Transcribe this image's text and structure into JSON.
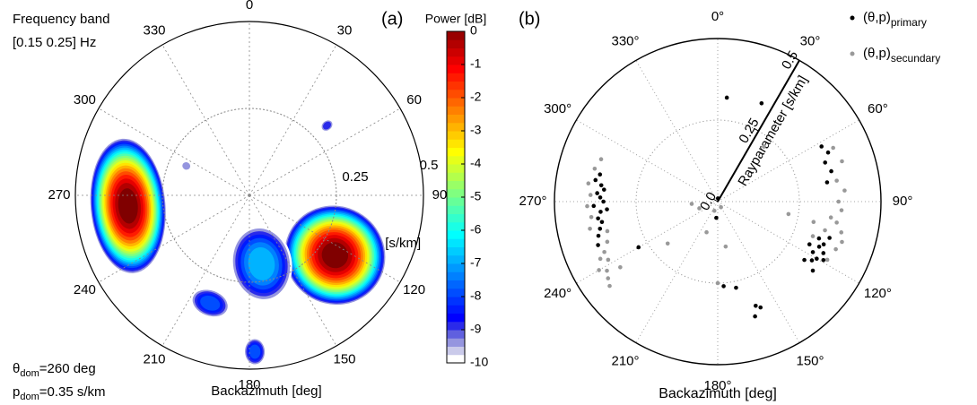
{
  "chart_data": [
    {
      "type": "polar-heatmap",
      "panel": "(a)",
      "annotations": [
        "Frequency band",
        "[0.15 0.25] Hz"
      ],
      "dominant": [
        {
          "symbol": "θ",
          "sub": "dom",
          "text": "=260 deg"
        },
        {
          "symbol": "p",
          "sub": "dom",
          "text": "=0.35 s/km"
        }
      ],
      "xlabel": "Backazimuth [deg]",
      "rlabel": "Rayparameter [s/km]",
      "thetaticks": [
        0,
        30,
        60,
        90,
        120,
        150,
        180,
        210,
        240,
        270,
        300,
        330
      ],
      "rlim": [
        0,
        0.5
      ],
      "rticks": [
        0.25,
        0.5
      ],
      "colorbar": {
        "label": "Power [dB]",
        "lim": [
          -10,
          0
        ],
        "ticks": [
          0,
          -1,
          -2,
          -3,
          -4,
          -5,
          -6,
          -7,
          -8,
          -9,
          -10
        ]
      },
      "blobs": [
        {
          "theta": 265,
          "p": 0.35,
          "power": 0,
          "theta_width": 65,
          "p_width": 0.22
        },
        {
          "theta": 125,
          "p": 0.3,
          "power": 0,
          "theta_width": 55,
          "p_width": 0.3
        },
        {
          "theta": 170,
          "p": 0.2,
          "power": -7,
          "theta_width": 50,
          "p_width": 0.22
        },
        {
          "theta": 200,
          "p": 0.33,
          "power": -8,
          "theta_width": 20,
          "p_width": 0.08
        },
        {
          "theta": 178,
          "p": 0.45,
          "power": -8,
          "theta_width": 8,
          "p_width": 0.08
        },
        {
          "theta": 48,
          "p": 0.3,
          "power": -9,
          "theta_width": 6,
          "p_width": 0.04
        },
        {
          "theta": 295,
          "p": 0.2,
          "power": -9.5,
          "theta_width": 8,
          "p_width": 0.03
        }
      ]
    },
    {
      "type": "polar-scatter",
      "panel": "(b)",
      "xlabel": "Backazimuth [deg]",
      "rlabel": "Rayparameter [s/km]",
      "thetaticks": [
        {
          "value": 0,
          "label": "0°"
        },
        {
          "value": 30,
          "label": "30°"
        },
        {
          "value": 60,
          "label": "60°"
        },
        {
          "value": 90,
          "label": "90°"
        },
        {
          "value": 120,
          "label": "120°"
        },
        {
          "value": 150,
          "label": "150°"
        },
        {
          "value": 180,
          "label": "180°"
        },
        {
          "value": 210,
          "label": "210°"
        },
        {
          "value": 240,
          "label": "240°"
        },
        {
          "value": 270,
          "label": "270°"
        },
        {
          "value": 300,
          "label": "300°"
        },
        {
          "value": 330,
          "label": "330°"
        }
      ],
      "rlim": [
        0,
        0.5
      ],
      "rticks": [
        {
          "value": 0,
          "label": "0.0"
        },
        0.25,
        0.5
      ],
      "rtick_angle": 30,
      "series": [
        {
          "name": "(θ,p)",
          "subscript": "primary",
          "color": "#000000",
          "x": [
            262,
            265,
            268,
            270,
            272,
            274,
            276,
            278,
            280,
            283,
            266,
            260,
            257,
            254,
            250,
            62,
            66,
            70,
            75,
            80,
            110,
            112,
            114,
            116,
            118,
            120,
            122,
            115,
            119,
            124,
            108,
            126,
            168,
            160,
            162,
            158,
            176,
            24,
            5,
            5,
            240,
            185
          ],
          "values": [
            0.37,
            0.36,
            0.38,
            0.35,
            0.36,
            0.37,
            0.35,
            0.36,
            0.38,
            0.37,
            0.34,
            0.36,
            0.37,
            0.38,
            0.39,
            0.36,
            0.37,
            0.35,
            0.36,
            0.34,
            0.33,
            0.35,
            0.34,
            0.36,
            0.33,
            0.35,
            0.34,
            0.31,
            0.37,
            0.32,
            0.36,
            0.36,
            0.27,
            0.34,
            0.37,
            0.35,
            0.26,
            0.33,
            0.32,
            0.01,
            0.28,
            0.05
          ]
        },
        {
          "name": "(θ,p)",
          "subscript": "secundary",
          "color": "#999999",
          "x": [
            258,
            263,
            268,
            273,
            278,
            285,
            290,
            255,
            250,
            246,
            242,
            238,
            235,
            232,
            240,
            236,
            244,
            100,
            104,
            108,
            112,
            105,
            98,
            94,
            90,
            85,
            80,
            72,
            65,
            118,
            110,
            102,
            265,
            250,
            200,
            180,
            170,
            40,
            150,
            100,
            200,
            230
          ],
          "values": [
            0.4,
            0.39,
            0.4,
            0.39,
            0.4,
            0.39,
            0.38,
            0.35,
            0.36,
            0.38,
            0.38,
            0.4,
            0.41,
            0.42,
            0.42,
            0.36,
            0.4,
            0.37,
            0.39,
            0.4,
            0.39,
            0.34,
            0.35,
            0.38,
            0.37,
            0.39,
            0.37,
            0.4,
            0.39,
            0.38,
            0.31,
            0.3,
            0.08,
            0.06,
            0.1,
            0.25,
            0.14,
            0.22,
            0.02,
            0.22,
            0.03,
            0.2
          ]
        }
      ]
    }
  ]
}
